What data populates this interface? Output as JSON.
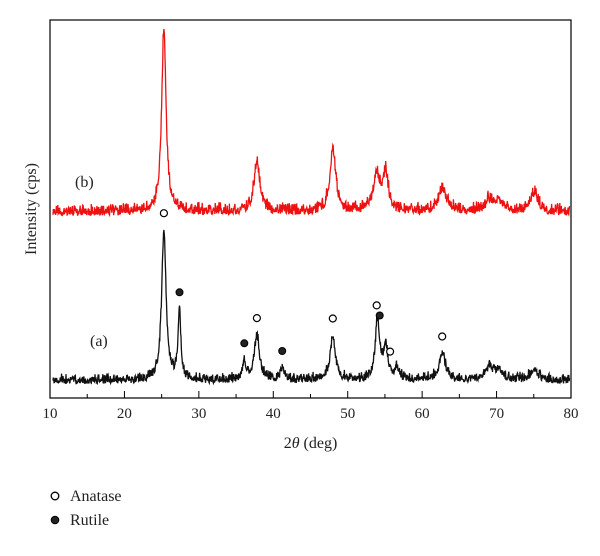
{
  "chart_data": {
    "type": "line",
    "title": "",
    "xlabel_pre": "2",
    "xlabel_theta": "θ",
    "xlabel_post": " (deg)",
    "ylabel": "Intensity (cps)",
    "xlim": [
      10,
      80
    ],
    "xticks": [
      "10",
      "20",
      "30",
      "40",
      "50",
      "60",
      "70",
      "80"
    ],
    "y_ticks_shown": false,
    "grid": false,
    "series": [
      {
        "name": "(b)",
        "color": "#ee1111",
        "baseline": 0.0,
        "noise": 0.055,
        "peaks": [
          {
            "x": 25.3,
            "h": 1.0,
            "w": 0.35
          },
          {
            "x": 37.8,
            "h": 0.28,
            "w": 0.45
          },
          {
            "x": 48.0,
            "h": 0.35,
            "w": 0.45
          },
          {
            "x": 53.9,
            "h": 0.2,
            "w": 0.55
          },
          {
            "x": 55.1,
            "h": 0.2,
            "w": 0.4
          },
          {
            "x": 62.7,
            "h": 0.13,
            "w": 0.6
          },
          {
            "x": 69.0,
            "h": 0.06,
            "w": 0.6
          },
          {
            "x": 70.3,
            "h": 0.06,
            "w": 0.6
          },
          {
            "x": 75.1,
            "h": 0.1,
            "w": 0.6
          }
        ]
      },
      {
        "name": "(a)",
        "color": "#111111",
        "baseline": 0.0,
        "noise": 0.055,
        "peaks": [
          {
            "x": 25.3,
            "h": 1.0,
            "w": 0.35
          },
          {
            "x": 27.4,
            "h": 0.45,
            "w": 0.22
          },
          {
            "x": 36.1,
            "h": 0.12,
            "w": 0.3
          },
          {
            "x": 37.8,
            "h": 0.3,
            "w": 0.4
          },
          {
            "x": 41.2,
            "h": 0.08,
            "w": 0.3
          },
          {
            "x": 48.0,
            "h": 0.3,
            "w": 0.4
          },
          {
            "x": 54.0,
            "h": 0.4,
            "w": 0.35
          },
          {
            "x": 55.1,
            "h": 0.22,
            "w": 0.35
          },
          {
            "x": 56.6,
            "h": 0.08,
            "w": 0.3
          },
          {
            "x": 62.7,
            "h": 0.18,
            "w": 0.5
          },
          {
            "x": 69.0,
            "h": 0.08,
            "w": 0.6
          },
          {
            "x": 70.3,
            "h": 0.07,
            "w": 0.6
          },
          {
            "x": 75.1,
            "h": 0.07,
            "w": 0.6
          }
        ]
      }
    ],
    "markers": [
      {
        "phase": "Anatase",
        "x": 25.3,
        "series": "(a)"
      },
      {
        "phase": "Rutile",
        "x": 27.4,
        "series": "(a)"
      },
      {
        "phase": "Rutile",
        "x": 36.1,
        "series": "(a)"
      },
      {
        "phase": "Anatase",
        "x": 37.8,
        "series": "(a)"
      },
      {
        "phase": "Rutile",
        "x": 41.2,
        "series": "(a)"
      },
      {
        "phase": "Anatase",
        "x": 48.0,
        "series": "(a)"
      },
      {
        "phase": "Anatase",
        "x": 53.9,
        "series": "(a)"
      },
      {
        "phase": "Rutile",
        "x": 54.3,
        "series": "(a)"
      },
      {
        "phase": "Anatase",
        "x": 55.7,
        "series": "(a)"
      },
      {
        "phase": "Anatase",
        "x": 62.7,
        "series": "(a)"
      }
    ],
    "legend": {
      "placement": "bottom-left",
      "entries": [
        {
          "label": "Anatase",
          "symbol": "open-circle"
        },
        {
          "label": "Rutile",
          "symbol": "filled-circle"
        }
      ]
    }
  }
}
